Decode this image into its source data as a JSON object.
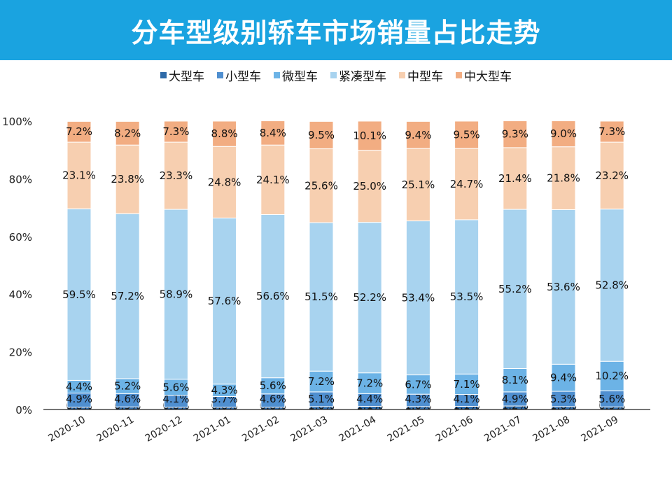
{
  "title": "分车型级别轿车市场销量占比走势",
  "chart_data": {
    "type": "bar",
    "stacked": true,
    "title": "分车型级别轿车市场销量占比走势",
    "categories": [
      "2020-10",
      "2020-11",
      "2020-12",
      "2021-01",
      "2021-02",
      "2021-03",
      "2021-04",
      "2021-05",
      "2021-06",
      "2021-07",
      "2021-08",
      "2021-09"
    ],
    "series": [
      {
        "name": "大型车",
        "color": "#2e6aa8",
        "values": [
          0.8,
          0.9,
          0.8,
          0.8,
          0.8,
          1.0,
          1.1,
          1.0,
          1.1,
          1.2,
          1.0,
          0.9
        ],
        "labels": [
          "0.8%",
          "0.9%",
          "0.8%",
          "0.8%",
          "0.8%",
          "1.0%",
          "1.1%",
          "1.0%",
          "1.1%",
          "1.2%",
          "1.0%",
          "0.9%"
        ]
      },
      {
        "name": "小型车",
        "color": "#4f8fd0",
        "values": [
          4.9,
          4.6,
          4.1,
          3.7,
          4.6,
          5.1,
          4.4,
          4.3,
          4.1,
          4.9,
          5.3,
          5.6
        ],
        "labels": [
          "4.9%",
          "4.6%",
          "4.1%",
          "3.7%",
          "4.6%",
          "5.1%",
          "4.4%",
          "4.3%",
          "4.1%",
          "4.9%",
          "5.3%",
          "5.6%"
        ]
      },
      {
        "name": "微型车",
        "color": "#6cb3e6",
        "values": [
          4.4,
          5.2,
          5.6,
          4.3,
          5.6,
          7.2,
          7.2,
          6.7,
          7.1,
          8.1,
          9.4,
          10.2
        ],
        "labels": [
          "4.4%",
          "5.2%",
          "5.6%",
          "4.3%",
          "5.6%",
          "7.2%",
          "7.2%",
          "6.7%",
          "7.1%",
          "8.1%",
          "9.4%",
          "10.2%"
        ]
      },
      {
        "name": "紧凑型车",
        "color": "#a8d3ef",
        "values": [
          59.5,
          57.2,
          58.9,
          57.6,
          56.6,
          51.5,
          52.2,
          53.4,
          53.5,
          55.2,
          53.6,
          52.8
        ],
        "labels": [
          "59.5%",
          "57.2%",
          "58.9%",
          "57.6%",
          "56.6%",
          "51.5%",
          "52.2%",
          "53.4%",
          "53.5%",
          "55.2%",
          "53.6%",
          "52.8%"
        ]
      },
      {
        "name": "中型车",
        "color": "#f7cfb0",
        "values": [
          23.1,
          23.8,
          23.3,
          24.8,
          24.1,
          25.6,
          25.0,
          25.1,
          24.7,
          21.4,
          21.8,
          23.2
        ],
        "labels": [
          "23.1%",
          "23.8%",
          "23.3%",
          "24.8%",
          "24.1%",
          "25.6%",
          "25.0%",
          "25.1%",
          "24.7%",
          "21.4%",
          "21.8%",
          "23.2%"
        ]
      },
      {
        "name": "中大型车",
        "color": "#f2ad82",
        "values": [
          7.2,
          8.2,
          7.3,
          8.8,
          8.4,
          9.5,
          10.1,
          9.4,
          9.5,
          9.3,
          9.0,
          7.3
        ],
        "labels": [
          "7.2%",
          "8.2%",
          "7.3%",
          "8.8%",
          "8.4%",
          "9.5%",
          "10.1%",
          "9.4%",
          "9.5%",
          "9.3%",
          "9.0%",
          "7.3%"
        ]
      }
    ],
    "y_ticks": [
      "0%",
      "20%",
      "40%",
      "60%",
      "80%",
      "100%"
    ],
    "ylim": [
      0,
      100
    ],
    "grid": false,
    "legend": "top"
  }
}
